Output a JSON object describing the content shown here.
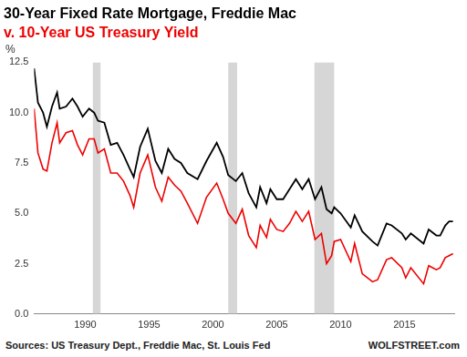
{
  "chart_data": {
    "type": "line",
    "title": "30-Year Fixed Rate Mortgage, Freddie Mac",
    "subtitle": "v. 10-Year US Treasury Yield",
    "y_label": "%",
    "annotations": [
      "Sources: US Treasury Dept., Freddie Mac, St. Louis Fed",
      "WOLFSTREET.com"
    ],
    "x": [
      1986.0,
      1986.3,
      1986.7,
      1987.0,
      1987.4,
      1987.8,
      1988.0,
      1988.5,
      1989.0,
      1989.4,
      1989.8,
      1990.3,
      1990.7,
      1991.0,
      1991.5,
      1992.0,
      1992.5,
      1993.0,
      1993.5,
      1993.8,
      1994.3,
      1994.9,
      1995.5,
      1996.0,
      1996.5,
      1997.0,
      1997.5,
      1998.0,
      1998.8,
      1999.5,
      2000.3,
      2000.8,
      2001.2,
      2001.8,
      2002.3,
      2002.8,
      2003.4,
      2003.7,
      2004.2,
      2004.5,
      2005.0,
      2005.5,
      2006.0,
      2006.5,
      2007.0,
      2007.5,
      2008.0,
      2008.5,
      2008.9,
      2009.3,
      2009.5,
      2010.0,
      2010.8,
      2011.1,
      2011.7,
      2012.5,
      2012.9,
      2013.6,
      2014.0,
      2014.8,
      2015.1,
      2015.5,
      2016.5,
      2016.9,
      2017.5,
      2017.8,
      2018.2,
      2018.5,
      2018.8
    ],
    "series": [
      {
        "name": "30-Year Fixed Rate Mortgage, Freddie Mac",
        "color": "#000000",
        "values": [
          12.2,
          10.5,
          10.0,
          9.3,
          10.3,
          11.0,
          10.2,
          10.3,
          10.7,
          10.3,
          9.8,
          10.2,
          10.0,
          9.6,
          9.5,
          8.4,
          8.5,
          7.9,
          7.2,
          6.8,
          8.3,
          9.2,
          7.6,
          7.0,
          8.2,
          7.7,
          7.5,
          7.0,
          6.7,
          7.6,
          8.5,
          7.8,
          6.9,
          6.6,
          7.0,
          6.0,
          5.3,
          6.3,
          5.5,
          6.2,
          5.7,
          5.7,
          6.2,
          6.7,
          6.2,
          6.7,
          5.7,
          6.3,
          5.2,
          5.0,
          5.3,
          5.0,
          4.3,
          4.9,
          4.1,
          3.6,
          3.4,
          4.5,
          4.4,
          4.0,
          3.7,
          4.0,
          3.5,
          4.2,
          3.9,
          3.9,
          4.4,
          4.6,
          4.6
        ]
      },
      {
        "name": "10-Year US Treasury Yield",
        "color": "#ee0000",
        "values": [
          10.2,
          8.0,
          7.2,
          7.1,
          8.5,
          9.5,
          8.5,
          9.0,
          9.1,
          8.4,
          7.9,
          8.7,
          8.7,
          8.0,
          8.2,
          7.0,
          7.0,
          6.6,
          5.9,
          5.3,
          7.0,
          7.9,
          6.3,
          5.6,
          6.8,
          6.4,
          6.1,
          5.5,
          4.5,
          5.8,
          6.5,
          5.7,
          5.0,
          4.5,
          5.2,
          3.9,
          3.3,
          4.4,
          3.8,
          4.7,
          4.2,
          4.1,
          4.5,
          5.1,
          4.6,
          5.1,
          3.7,
          4.0,
          2.5,
          2.9,
          3.6,
          3.7,
          2.6,
          3.5,
          2.0,
          1.6,
          1.7,
          2.7,
          2.8,
          2.3,
          1.8,
          2.3,
          1.5,
          2.4,
          2.2,
          2.3,
          2.8,
          2.9,
          3.0
        ]
      }
    ],
    "shaded_ranges": [
      [
        1990.6,
        1991.2
      ],
      [
        2001.2,
        2001.9
      ],
      [
        2007.95,
        2009.5
      ]
    ],
    "xlim": [
      1986.0,
      2018.9
    ],
    "xticks": [
      1990,
      1995,
      2000,
      2005,
      2010,
      2015
    ],
    "ylim": [
      0,
      12.5
    ],
    "yticks": [
      {
        "value": 0,
        "label": "0.0"
      },
      {
        "value": 2.5,
        "label": "2.5"
      },
      {
        "value": 5,
        "label": "5.0"
      },
      {
        "value": 7.5,
        "label": "7.5"
      },
      {
        "value": 10,
        "label": "10.0"
      },
      {
        "value": 12.5,
        "label": "12.5"
      }
    ],
    "grid": false
  }
}
